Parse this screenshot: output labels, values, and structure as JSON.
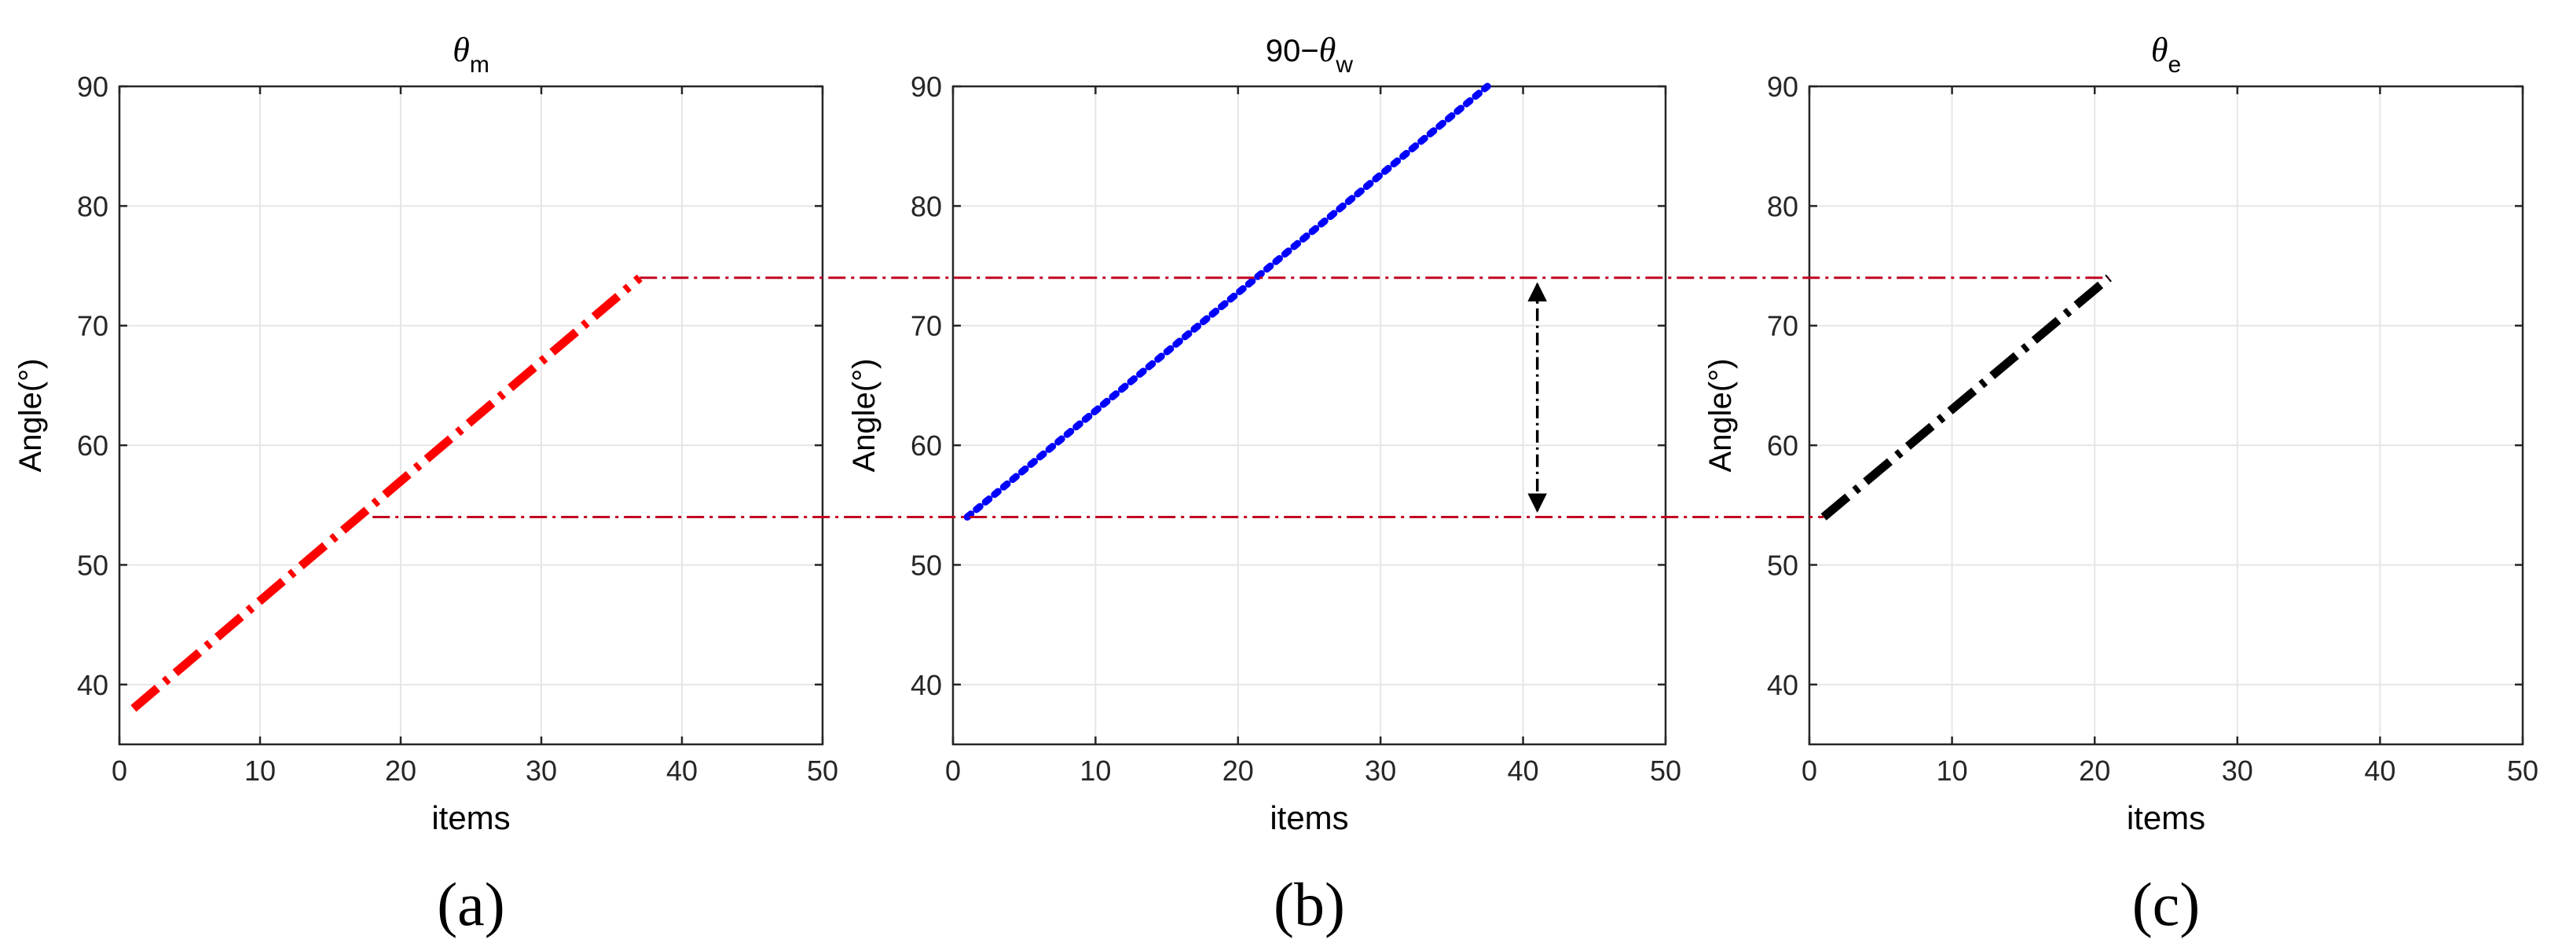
{
  "colors": {
    "red_series": "#ff0000",
    "blue_series": "#0000ff",
    "black_series": "#000000",
    "guide_lines": "#c00020",
    "grid": "#e6e6e6",
    "axes": "#262626"
  },
  "chart_data": [
    {
      "type": "line",
      "panel_label": "(a)",
      "title": {
        "symbol": "θ",
        "subscript": "m",
        "prefix": ""
      },
      "xlabel": "items",
      "ylabel": "Angle(°)",
      "xlim": [
        0,
        50
      ],
      "ylim": [
        35,
        90
      ],
      "xticks": [
        0,
        10,
        20,
        30,
        40,
        50
      ],
      "yticks": [
        40,
        50,
        60,
        70,
        80,
        90
      ],
      "grid": true,
      "series": [
        {
          "color": "#ff0000",
          "style": "dash-dot",
          "x": [
            1,
            37
          ],
          "y": [
            38,
            74
          ]
        }
      ]
    },
    {
      "type": "line",
      "panel_label": "(b)",
      "title": {
        "symbol": "θ",
        "subscript": "w",
        "prefix": "90−"
      },
      "xlabel": "items",
      "ylabel": "Angle(°)",
      "xlim": [
        0,
        50
      ],
      "ylim": [
        35,
        90
      ],
      "xticks": [
        0,
        10,
        20,
        30,
        40,
        50
      ],
      "yticks": [
        40,
        50,
        60,
        70,
        80,
        90
      ],
      "grid": true,
      "series": [
        {
          "color": "#0000ff",
          "style": "dotted",
          "x": [
            1,
            37.5
          ],
          "y": [
            54,
            90
          ]
        }
      ]
    },
    {
      "type": "line",
      "panel_label": "(c)",
      "title": {
        "symbol": "θ",
        "subscript": "e",
        "prefix": ""
      },
      "xlabel": "items",
      "ylabel": "Angle(°)",
      "xlim": [
        0,
        50
      ],
      "ylim": [
        35,
        90
      ],
      "xticks": [
        0,
        10,
        20,
        30,
        40,
        50
      ],
      "yticks": [
        40,
        50,
        60,
        70,
        80,
        90
      ],
      "grid": true,
      "series": [
        {
          "color": "#000000",
          "style": "dash-dot",
          "x": [
            1,
            21
          ],
          "y": [
            54,
            74
          ]
        }
      ]
    }
  ],
  "annotations": {
    "guide_lines": [
      {
        "from_panel": 0,
        "from_x": 37,
        "to_panel": 2,
        "to_x": 21,
        "y": 74
      },
      {
        "from_panel": 0,
        "from_x": 18,
        "to_panel": 2,
        "to_x": 1,
        "y": 54
      }
    ],
    "double_arrow": {
      "panel": 1,
      "x": 41,
      "y_top": 74,
      "y_bottom": 54
    }
  }
}
